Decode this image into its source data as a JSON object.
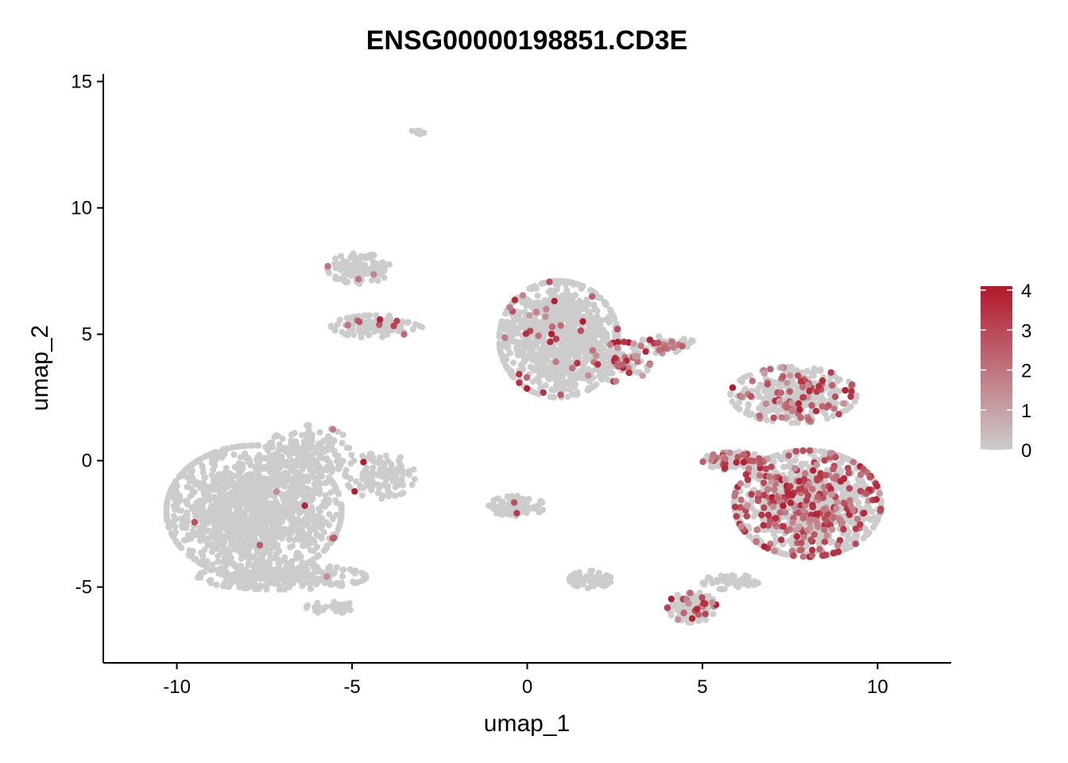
{
  "chart_data": {
    "type": "scatter",
    "title": "ENSG00000198851.CD3E",
    "xlabel": "umap_1",
    "ylabel": "umap_2",
    "xlim": [
      -12.1,
      12.1
    ],
    "ylim": [
      -8,
      15.3
    ],
    "xticks": [
      -10,
      -5,
      0,
      5,
      10
    ],
    "xtick_labels": [
      "-10",
      "-5",
      "0",
      "5",
      "10"
    ],
    "yticks": [
      -5,
      0,
      5,
      10,
      15
    ],
    "ytick_labels": [
      "-5",
      "0",
      "5",
      "10",
      "15"
    ],
    "grid": false,
    "legend": {
      "position": "right",
      "type": "colorbar",
      "min": 0,
      "max": 4.1,
      "ticks": [
        0,
        1,
        2,
        3,
        4
      ],
      "tick_labels": [
        "0",
        "1",
        "2",
        "3",
        "4"
      ],
      "low_color": "#CCCCCC",
      "high_color": "#B2182B"
    },
    "clusters": [
      {
        "cx": -7.8,
        "cy": -2.0,
        "rx": 2.5,
        "ry": 2.6,
        "n": 1500,
        "expr_frac": 0.004
      },
      {
        "cx": -6.2,
        "cy": 0.4,
        "rx": 1.2,
        "ry": 1.0,
        "n": 160,
        "expr_frac": 0.01
      },
      {
        "cx": -4.2,
        "cy": -0.6,
        "rx": 1.0,
        "ry": 0.9,
        "n": 120,
        "expr_frac": 0.01
      },
      {
        "cx": -7.0,
        "cy": -4.6,
        "rx": 2.4,
        "ry": 0.5,
        "n": 260,
        "expr_frac": 0.004
      },
      {
        "cx": -5.6,
        "cy": -5.8,
        "rx": 0.7,
        "ry": 0.25,
        "n": 40,
        "expr_frac": 0.0
      },
      {
        "cx": -4.8,
        "cy": 7.6,
        "rx": 0.9,
        "ry": 0.6,
        "n": 110,
        "expr_frac": 0.03
      },
      {
        "cx": -4.3,
        "cy": 5.3,
        "rx": 1.3,
        "ry": 0.45,
        "n": 120,
        "expr_frac": 0.03
      },
      {
        "cx": -3.1,
        "cy": 13.0,
        "rx": 0.2,
        "ry": 0.12,
        "n": 10,
        "expr_frac": 0.0
      },
      {
        "cx": 0.9,
        "cy": 4.8,
        "rx": 1.7,
        "ry": 2.3,
        "n": 950,
        "expr_frac": 0.03
      },
      {
        "cx": 2.7,
        "cy": 3.9,
        "rx": 0.8,
        "ry": 0.8,
        "n": 90,
        "expr_frac": 0.22
      },
      {
        "cx": 3.9,
        "cy": 4.6,
        "rx": 0.9,
        "ry": 0.35,
        "n": 60,
        "expr_frac": 0.3
      },
      {
        "cx": 7.6,
        "cy": 2.6,
        "rx": 1.8,
        "ry": 1.1,
        "n": 380,
        "expr_frac": 0.2
      },
      {
        "cx": 8.0,
        "cy": -1.7,
        "rx": 2.1,
        "ry": 2.1,
        "n": 1100,
        "expr_frac": 0.24
      },
      {
        "cx": 5.9,
        "cy": 0.0,
        "rx": 0.9,
        "ry": 0.35,
        "n": 110,
        "expr_frac": 0.22
      },
      {
        "cx": -0.3,
        "cy": -1.8,
        "rx": 0.8,
        "ry": 0.4,
        "n": 90,
        "expr_frac": 0.02
      },
      {
        "cx": 1.8,
        "cy": -4.7,
        "rx": 0.6,
        "ry": 0.35,
        "n": 70,
        "expr_frac": 0.02
      },
      {
        "cx": 4.7,
        "cy": -5.8,
        "rx": 0.7,
        "ry": 0.6,
        "n": 120,
        "expr_frac": 0.12
      },
      {
        "cx": 5.8,
        "cy": -4.8,
        "rx": 0.8,
        "ry": 0.3,
        "n": 50,
        "expr_frac": 0.05
      }
    ]
  }
}
